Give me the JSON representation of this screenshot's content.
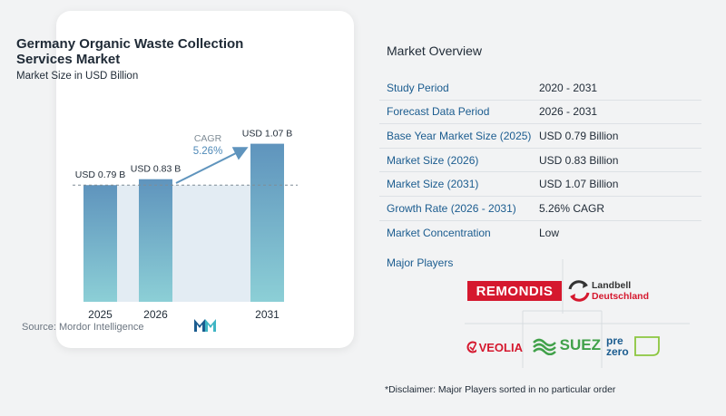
{
  "chart_data": {
    "type": "bar",
    "title": "Germany Organic Waste Collection Services Market",
    "subtitle": "Market Size in USD Billion",
    "categories": [
      "2025",
      "2026",
      "2031"
    ],
    "values": [
      0.79,
      0.83,
      1.07
    ],
    "value_labels": [
      "USD 0.79 B",
      "USD 0.83 B",
      "USD 1.07 B"
    ],
    "cagr_label": "CAGR",
    "cagr_value": "5.26%",
    "colors": {
      "bar_top": "#5f94bd",
      "bar_bottom": "#8ccfd6",
      "shade": "#e3ecf3",
      "arrow": "#5f94bd"
    },
    "grid": false,
    "legend": "none"
  },
  "source": "Source: Mordor Intelligence",
  "overview": {
    "title": "Market Overview",
    "rows": [
      {
        "label": "Study Period",
        "value": "2020 - 2031"
      },
      {
        "label": "Forecast Data Period",
        "value": "2026 - 2031"
      },
      {
        "label": "Base Year Market Size (2025)",
        "value": "USD 0.79 Billion"
      },
      {
        "label": "Market Size (2026)",
        "value": "USD 0.83 Billion"
      },
      {
        "label": "Market Size (2031)",
        "value": "USD 1.07 Billion"
      },
      {
        "label": "Growth Rate (2026 - 2031)",
        "value": "5.26% CAGR"
      },
      {
        "label": "Market Concentration",
        "value": "Low"
      }
    ]
  },
  "players": {
    "label": "Major Players",
    "logos": {
      "remondis": "REMONDIS",
      "landbell_1": "Landbell",
      "landbell_2": "Deutschland",
      "veolia": "VEOLIA",
      "suez": "SUEZ",
      "prezero_1": "pre",
      "prezero_2": "zero"
    }
  },
  "disclaimer": "*Disclaimer: Major Players sorted in no particular order"
}
